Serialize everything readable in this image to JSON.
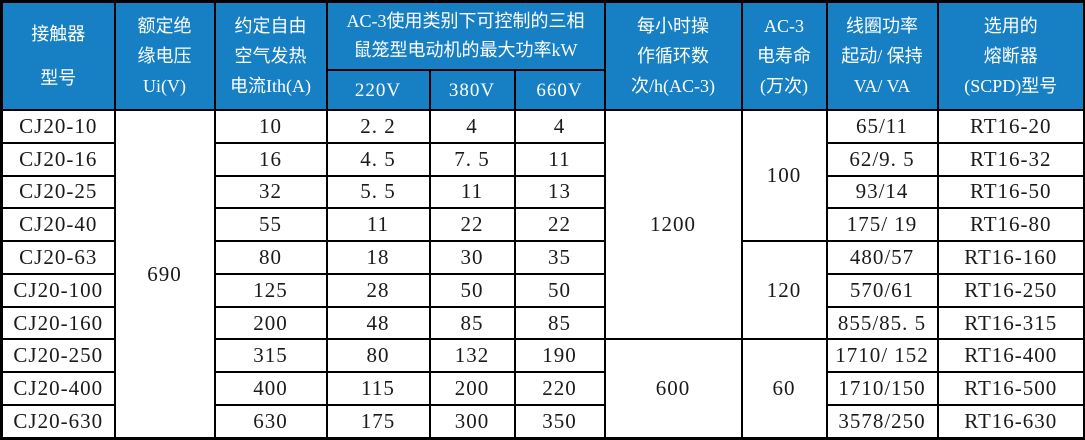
{
  "table": {
    "header": {
      "model": "接触器\n型号",
      "ui": "额定绝\n缘电压\nUi(V)",
      "ith": "约定自由\n空气发热\n电流Ith(A)",
      "ac3_power": "AC-3使用类别下可控制的三相\n鼠笼型电动机的最大功率kW",
      "v220": "220V",
      "v380": "380V",
      "v660": "660V",
      "cycles": "每小时操\n作循环数\n次/h(AC-3)",
      "life": "AC-3\n电寿命\n(万次)",
      "coil": "线圈功率\n起动/ 保持\nVA/ VA",
      "fuse": "选用的\n熔断器\n(SCPD)型号"
    },
    "rows": [
      {
        "model": "CJ20-10",
        "ith": "10",
        "p220": "2. 2",
        "p380": "4",
        "p660": "4",
        "coil": "65/11",
        "fuse": "RT16-20"
      },
      {
        "model": "CJ20-16",
        "ith": "16",
        "p220": "4. 5",
        "p380": "7. 5",
        "p660": "11",
        "coil": "62/9. 5",
        "fuse": "RT16-32"
      },
      {
        "model": "CJ20-25",
        "ith": "32",
        "p220": "5. 5",
        "p380": "11",
        "p660": "13",
        "coil": "93/14",
        "fuse": "RT16-50"
      },
      {
        "model": "CJ20-40",
        "ith": "55",
        "p220": "11",
        "p380": "22",
        "p660": "22",
        "coil": "175/ 19",
        "fuse": "RT16-80"
      },
      {
        "model": "CJ20-63",
        "ith": "80",
        "p220": "18",
        "p380": "30",
        "p660": "35",
        "coil": "480/57",
        "fuse": "RT16-160"
      },
      {
        "model": "CJ20-100",
        "ith": "125",
        "p220": "28",
        "p380": "50",
        "p660": "50",
        "coil": "570/61",
        "fuse": "RT16-250"
      },
      {
        "model": "CJ20-160",
        "ith": "200",
        "p220": "48",
        "p380": "85",
        "p660": "85",
        "coil": "855/85. 5",
        "fuse": "RT16-315"
      },
      {
        "model": "CJ20-250",
        "ith": "315",
        "p220": "80",
        "p380": "132",
        "p660": "190",
        "coil": "1710/ 152",
        "fuse": "RT16-400"
      },
      {
        "model": "CJ20-400",
        "ith": "400",
        "p220": "115",
        "p380": "200",
        "p660": "220",
        "coil": "1710/150",
        "fuse": "RT16-500"
      },
      {
        "model": "CJ20-630",
        "ith": "630",
        "p220": "175",
        "p380": "300",
        "p660": "350",
        "coil": "3578/250",
        "fuse": "RT16-630"
      }
    ],
    "merges": {
      "ui": [
        {
          "value": "690",
          "start": 0,
          "span": 10
        }
      ],
      "cycles": [
        {
          "value": "1200",
          "start": 0,
          "span": 7
        },
        {
          "value": "600",
          "start": 7,
          "span": 3
        }
      ],
      "life": [
        {
          "value": "100",
          "start": 0,
          "span": 4
        },
        {
          "value": "120",
          "start": 4,
          "span": 3
        },
        {
          "value": "60",
          "start": 7,
          "span": 3
        }
      ]
    },
    "colors": {
      "header_bg": "#1780c4",
      "header_text": "#ffffff",
      "border": "#000000",
      "body_text": "#1a1a1a"
    }
  }
}
